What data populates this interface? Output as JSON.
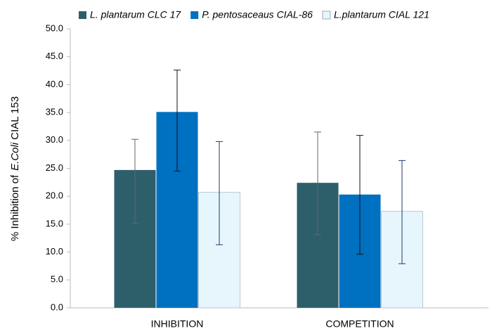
{
  "chart_data": {
    "type": "bar",
    "categories": [
      "INHIBITION",
      "COMPETITION"
    ],
    "ylabel": [
      "% Inhibition of",
      "E.Coli",
      "CIAL 153"
    ],
    "series": [
      {
        "name": "L. plantarum CLC 17",
        "color": "#2d5f6b",
        "error_color": "#666666",
        "values": [
          24.7,
          22.4
        ],
        "error_bars": [
          [
            15.1,
            30.2
          ],
          [
            13.1,
            31.5
          ]
        ]
      },
      {
        "name": "P. pentosaceaus CIAL-86",
        "color": "#0070c0",
        "error_color": "#111111",
        "values": [
          35.1,
          20.3
        ],
        "error_bars": [
          [
            24.5,
            42.6
          ],
          [
            9.6,
            30.9
          ]
        ]
      },
      {
        "name": "L.plantarum CIAL 121",
        "color": "#e6f6fc",
        "error_color": "#1f3a6b",
        "values": [
          20.7,
          17.3
        ],
        "error_bars": [
          [
            11.3,
            29.8
          ],
          [
            7.9,
            26.4
          ]
        ]
      }
    ],
    "ylim": [
      0,
      50
    ],
    "yticks": [
      {
        "value": 0,
        "label": "0.0"
      },
      {
        "value": 5,
        "label": "5.0"
      },
      {
        "value": 10,
        "label": "10.0"
      },
      {
        "value": 15,
        "label": "15.0"
      },
      {
        "value": 20,
        "label": "20.0"
      },
      {
        "value": 25,
        "label": "25.0"
      },
      {
        "value": 30,
        "label": "30.0"
      },
      {
        "value": 35,
        "label": "35.0"
      },
      {
        "value": 40,
        "label": "40.0"
      },
      {
        "value": 45,
        "label": "45.0"
      },
      {
        "value": 50,
        "label": "50.0"
      }
    ],
    "legend": "top"
  }
}
